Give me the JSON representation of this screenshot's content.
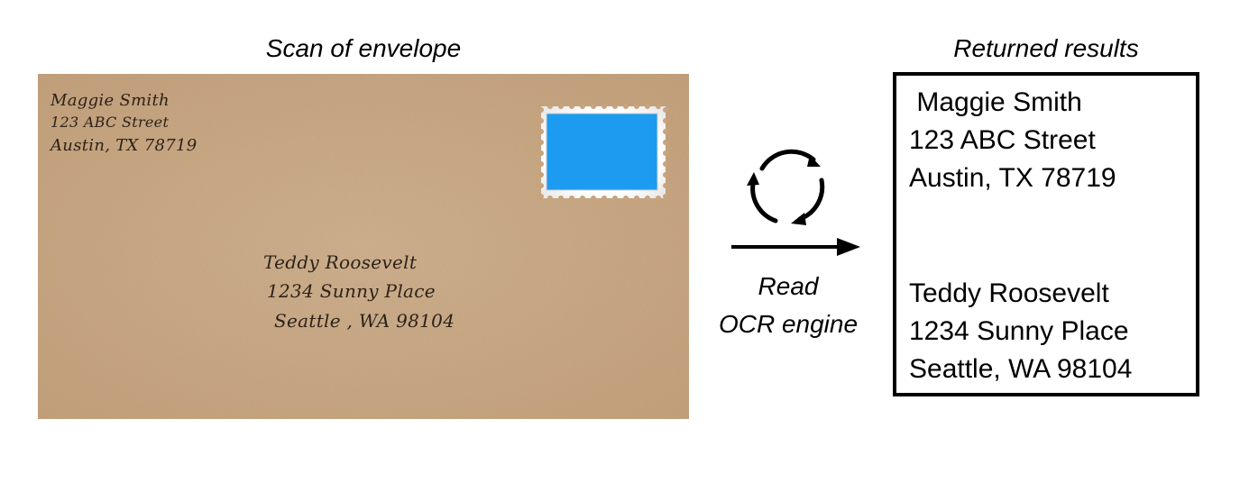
{
  "figure": {
    "envelope_caption": "Scan of envelope",
    "results_caption": "Returned results"
  },
  "envelope": {
    "sender": [
      "Maggie Smith",
      "123 ABC Street",
      "Austin, TX 78719"
    ],
    "recipient": [
      "Teddy Roosevelt",
      "1234 Sunny Place",
      "Seattle , WA 98104"
    ],
    "stamp_color": "#1d9bf0",
    "paper_color": "#c8a37c"
  },
  "ocr": {
    "icon": "refresh-cycle-icon",
    "arrow_icon": "right-arrow-icon",
    "label_line1": "Read",
    "label_line2": "OCR engine"
  },
  "results": {
    "lines": [
      " Maggie Smith",
      "123 ABC Street",
      "Austin, TX 78719",
      "Teddy Roosevelt",
      "1234 Sunny Place",
      "Seattle, WA 98104"
    ]
  }
}
